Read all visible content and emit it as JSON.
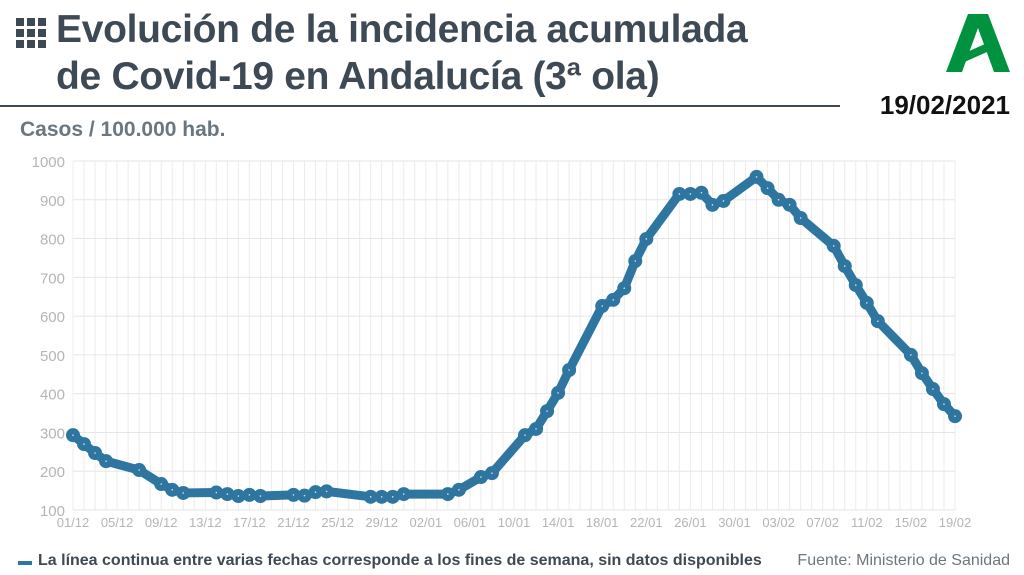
{
  "header": {
    "title_line1": "Evolución de la incidencia acumulada",
    "title_line2": "de Covid-19 en Andalucía (3ª ola)",
    "date": "19/02/2021",
    "logo": "Junta de Andalucía logo"
  },
  "footer": {
    "note": "La línea continua entre varias fechas corresponde a los fines de semana, sin datos disponibles",
    "source": "Fuente: Ministerio de Sanidad"
  },
  "colors": {
    "line": "#2e76a0",
    "title": "#3d4a55",
    "logo": "#00923f"
  },
  "chart_data": {
    "type": "line",
    "ylabel": "Casos / 100.000 hab.",
    "ylim": [
      100,
      1000
    ],
    "yticks": [
      100,
      200,
      300,
      400,
      500,
      600,
      700,
      800,
      900,
      1000
    ],
    "xlim": [
      0,
      80
    ],
    "x_unit": "days since 01/12/2020",
    "xtick_labels": [
      "01/12",
      "05/12",
      "09/12",
      "13/12",
      "17/12",
      "21/12",
      "25/12",
      "29/12",
      "02/01",
      "06/01",
      "10/01",
      "14/01",
      "18/01",
      "22/01",
      "26/01",
      "30/01",
      "03/02",
      "07/02",
      "11/02",
      "15/02",
      "19/02"
    ],
    "grid": true,
    "series": [
      {
        "name": "Incidencia acumulada",
        "points": [
          [
            0,
            293
          ],
          [
            1,
            270
          ],
          [
            2,
            247
          ],
          [
            3,
            226
          ],
          [
            6,
            203
          ],
          [
            8,
            167
          ],
          [
            9,
            152
          ],
          [
            10,
            144
          ],
          [
            13,
            145
          ],
          [
            14,
            141
          ],
          [
            15,
            136
          ],
          [
            16,
            139
          ],
          [
            17,
            136
          ],
          [
            20,
            139
          ],
          [
            21,
            137
          ],
          [
            22,
            146
          ],
          [
            23,
            148
          ],
          [
            27,
            134
          ],
          [
            28,
            134
          ],
          [
            29,
            134
          ],
          [
            30,
            141
          ],
          [
            34,
            141
          ],
          [
            35,
            152
          ],
          [
            37,
            185
          ],
          [
            38,
            195
          ],
          [
            41,
            293
          ],
          [
            42,
            309
          ],
          [
            43,
            355
          ],
          [
            44,
            402
          ],
          [
            45,
            461
          ],
          [
            48,
            626
          ],
          [
            49,
            642
          ],
          [
            50,
            672
          ],
          [
            51,
            742
          ],
          [
            52,
            799
          ],
          [
            55,
            915
          ],
          [
            56,
            915
          ],
          [
            57,
            918
          ],
          [
            58,
            887
          ],
          [
            59,
            897
          ],
          [
            62,
            959
          ],
          [
            63,
            930
          ],
          [
            64,
            900
          ],
          [
            65,
            887
          ],
          [
            66,
            853
          ],
          [
            69,
            781
          ],
          [
            70,
            729
          ],
          [
            71,
            680
          ],
          [
            72,
            634
          ],
          [
            73,
            587
          ],
          [
            76,
            500
          ],
          [
            77,
            453
          ],
          [
            78,
            412
          ],
          [
            79,
            373
          ],
          [
            80,
            342
          ]
        ]
      }
    ]
  }
}
